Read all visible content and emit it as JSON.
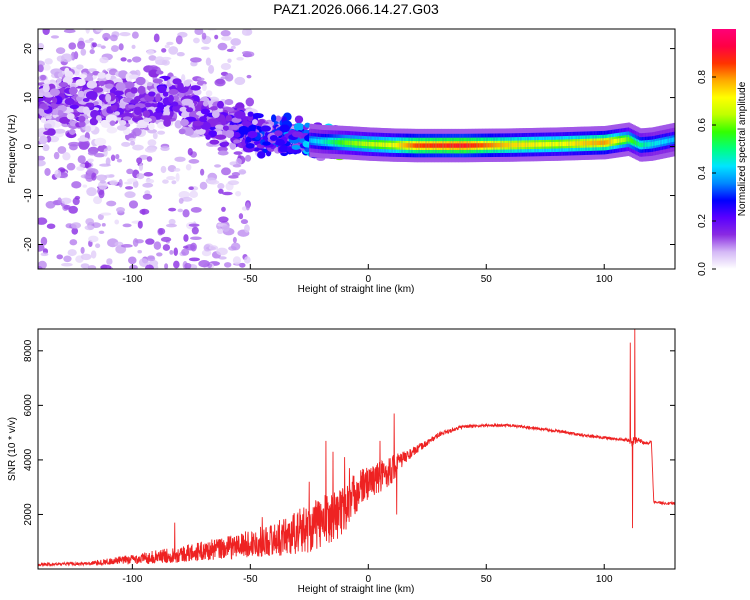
{
  "title": "PAZ1.2026.066.14.27.G03",
  "chart_data": [
    {
      "type": "heatmap",
      "title": "PAZ1.2026.066.14.27.G03",
      "xlabel": "Height of straight line (km)",
      "ylabel": "Frequency (Hz)",
      "xlim": [
        -140,
        130
      ],
      "ylim": [
        -25,
        24
      ],
      "xticks": [
        -100,
        -50,
        0,
        50,
        100
      ],
      "yticks": [
        -20,
        -10,
        0,
        10,
        20
      ],
      "colorbar": {
        "label": "Normalized spectral amplitude",
        "range": [
          0,
          1
        ],
        "ticks": [
          0.0,
          0.2,
          0.4,
          0.6,
          0.8
        ],
        "colormap": [
          "#ffffff",
          "#d4b8f6",
          "#8a2be2",
          "#5a00ff",
          "#0000ff",
          "#0088ff",
          "#00e5ff",
          "#00ff80",
          "#33ff00",
          "#bfff00",
          "#ffff00",
          "#ffaa00",
          "#ff3300",
          "#ff0044",
          "#ff0077"
        ]
      },
      "ridge": {
        "description": "Main energy ridge frequency vs height",
        "x": [
          -95,
          -90,
          -85,
          -80,
          -70,
          -60,
          -50,
          -40,
          -30,
          -20,
          -10,
          0,
          10,
          20,
          40,
          60,
          80,
          100,
          110,
          115,
          120,
          130
        ],
        "y": [
          9,
          10,
          10,
          9,
          6,
          4,
          3,
          2,
          1.5,
          1,
          0.8,
          0.5,
          0.3,
          0.2,
          0.2,
          0.3,
          0.5,
          0.8,
          1.5,
          0.3,
          0.5,
          1.5
        ],
        "amplitude": [
          0.18,
          0.2,
          0.22,
          0.2,
          0.2,
          0.22,
          0.25,
          0.3,
          0.35,
          0.45,
          0.6,
          0.65,
          0.7,
          0.85,
          0.9,
          0.75,
          0.7,
          0.8,
          0.6,
          0.5,
          0.45,
          0.4
        ]
      }
    },
    {
      "type": "line",
      "xlabel": "Height of straight line (km)",
      "ylabel": "SNR (10 * v/v)",
      "xlim": [
        -140,
        130
      ],
      "ylim": [
        0,
        8800
      ],
      "xticks": [
        -100,
        -50,
        0,
        50,
        100
      ],
      "yticks": [
        2000,
        4000,
        6000,
        8000
      ],
      "series": [
        {
          "name": "SNR",
          "color": "#ee2222",
          "envelope": {
            "x": [
              -140,
              -120,
              -100,
              -80,
              -60,
              -40,
              -30,
              -20,
              -10,
              -5,
              0,
              5,
              10,
              15,
              20,
              30,
              40,
              50,
              60,
              70,
              80,
              90,
              100,
              105,
              110,
              112,
              114,
              116,
              118,
              120,
              121,
              125,
              130
            ],
            "mean": [
              150,
              180,
              300,
              450,
              650,
              900,
              1100,
              1400,
              1900,
              2600,
              3000,
              3200,
              3500,
              4000,
              4300,
              4900,
              5200,
              5250,
              5250,
              5150,
              5050,
              4900,
              4800,
              4750,
              4700,
              4600,
              4700,
              4650,
              4600,
              4650,
              2450,
              2400,
              2400
            ],
            "noise": [
              80,
              100,
              300,
              500,
              700,
              1000,
              1400,
              1600,
              1500,
              1300,
              1000,
              1000,
              900,
              400,
              250,
              150,
              100,
              80,
              80,
              80,
              80,
              80,
              80,
              80,
              100,
              300,
              200,
              100,
              100,
              100,
              80,
              80,
              80
            ]
          },
          "spikes": [
            {
              "x": -82,
              "y": 1700
            },
            {
              "x": -45,
              "y": 1900
            },
            {
              "x": -25,
              "y": 3200
            },
            {
              "x": -18,
              "y": 4700
            },
            {
              "x": -15,
              "y": 4300
            },
            {
              "x": -10,
              "y": 4100
            },
            {
              "x": -8,
              "y": 3700
            },
            {
              "x": 5,
              "y": 4700
            },
            {
              "x": 11,
              "y": 5700
            },
            {
              "x": 12,
              "y": 2000
            },
            {
              "x": 111,
              "y": 8300
            },
            {
              "x": 112,
              "y": 1500
            },
            {
              "x": 113,
              "y": 8800
            }
          ]
        }
      ]
    }
  ]
}
